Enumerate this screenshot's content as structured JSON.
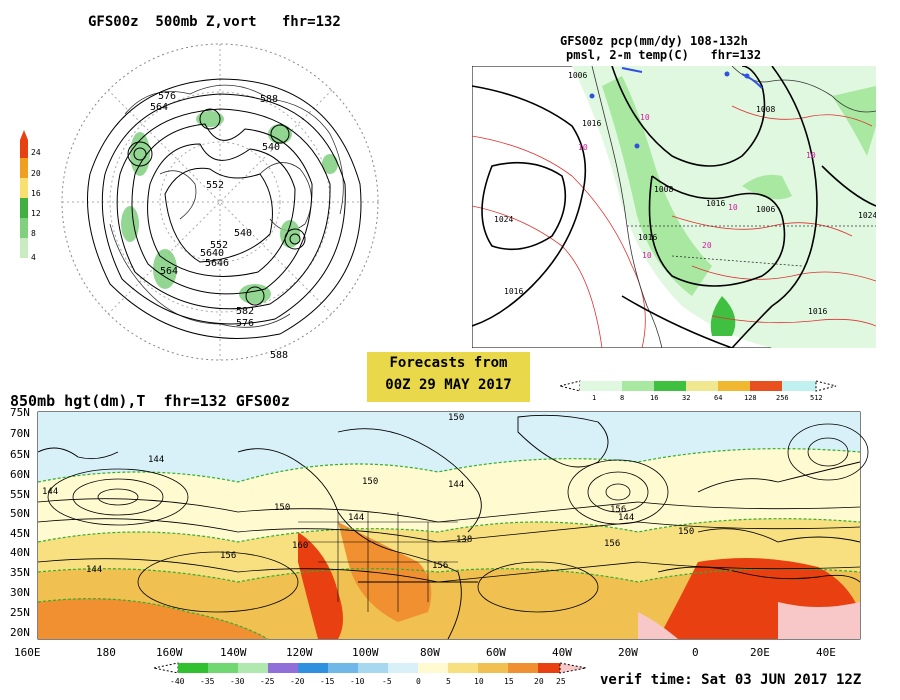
{
  "polar_panel": {
    "title": "GFS00z  500mb Z,vort   fhr=132",
    "contour_labels": [
      "576",
      "564",
      "588",
      "540",
      "552",
      "540",
      "552",
      "564",
      "576",
      "582",
      "588",
      "5640",
      "5646"
    ],
    "colorbar": {
      "ticks": [
        "24",
        "20",
        "16",
        "12",
        "8",
        "4"
      ],
      "colors": [
        "#e84010",
        "#f0a020",
        "#f8e070",
        "#40b040",
        "#80d080",
        "#c8ecc0"
      ]
    }
  },
  "us_panel": {
    "title_line1": "GFS00z pcp(mm/dy) 108-132h",
    "title_line2": "pmsl, 2-m temp(C)   fhr=132",
    "isobar_labels": [
      "1006",
      "1016",
      "1008",
      "1024",
      "1016",
      "1008",
      "1016",
      "1024",
      "1016",
      "1006",
      "1016"
    ],
    "temp_labels": [
      "10",
      "10",
      "10",
      "10",
      "10",
      "20"
    ],
    "colorbar": {
      "ticks": [
        "1",
        "8",
        "16",
        "32",
        "64",
        "128",
        "256",
        "512"
      ],
      "colors": [
        "#e0f8e0",
        "#a8e8a0",
        "#40c040",
        "#f0e890",
        "#f0b830",
        "#e85020",
        "#c0f0f0"
      ]
    }
  },
  "forecast_box": {
    "line1": "Forecasts from",
    "line2": "00Z 29 MAY 2017"
  },
  "panel_850": {
    "title": "850mb hgt(dm),T  fhr=132 GFS00z",
    "lat_labels": [
      "75N",
      "70N",
      "65N",
      "60N",
      "55N",
      "50N",
      "45N",
      "40N",
      "35N",
      "30N",
      "25N",
      "20N"
    ],
    "lon_labels": [
      "160E",
      "180",
      "160W",
      "140W",
      "120W",
      "100W",
      "80W",
      "60W",
      "40W",
      "20W",
      "0",
      "20E",
      "40E"
    ],
    "height_labels": [
      "144",
      "144",
      "150",
      "150",
      "144",
      "156",
      "150",
      "144",
      "156",
      "160",
      "138",
      "144",
      "150",
      "156",
      "156",
      "144"
    ],
    "colorbar": {
      "ticks": [
        "-40",
        "-35",
        "-30",
        "-25",
        "-20",
        "-15",
        "-10",
        "-5",
        "0",
        "5",
        "10",
        "15",
        "20",
        "25"
      ],
      "colors": [
        "#30c030",
        "#70d870",
        "#b0e8b0",
        "#9070d8",
        "#3090e0",
        "#70b8e8",
        "#a8d8f0",
        "#d8f0f8",
        "#fffad0",
        "#f8e080",
        "#f0c050",
        "#f09030",
        "#e84010"
      ]
    }
  },
  "verif_time": "verif time: Sat 03 JUN 2017 12Z"
}
